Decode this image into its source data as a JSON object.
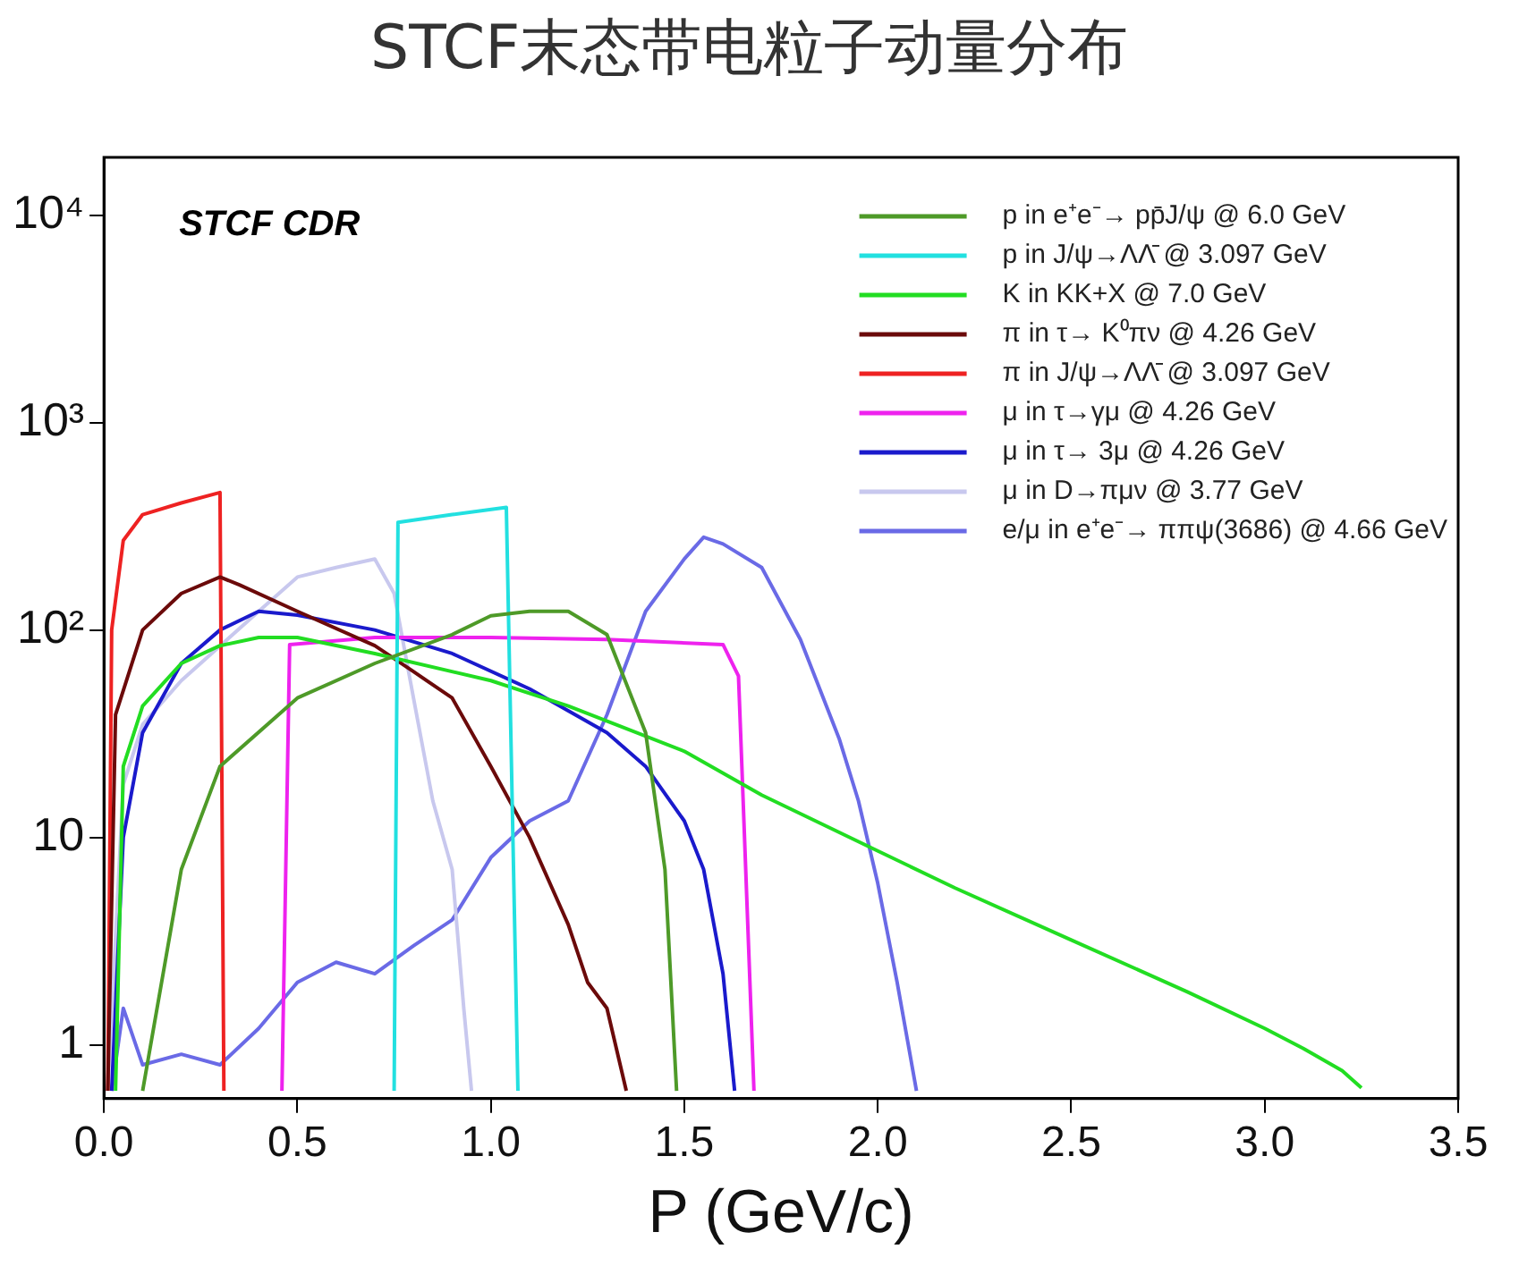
{
  "chart_data": {
    "type": "line",
    "title": "STCF末态带电粒子动量分布",
    "xlabel": "P (GeV/c)",
    "annotations": [
      "STCF CDR"
    ],
    "log": "y",
    "grid": false,
    "legend": "top right",
    "marker": "none",
    "xlim": [
      0,
      3.5
    ],
    "xticks": [
      {
        "value": 0,
        "label": "0.0"
      },
      0.5,
      {
        "value": 1,
        "label": "1.0"
      },
      1.5,
      {
        "value": 2,
        "label": "2.0"
      },
      2.5,
      {
        "value": 3,
        "label": "3.0"
      },
      3.5
    ],
    "ylim": [
      0.55,
      19000
    ],
    "yticks": [
      1,
      10,
      {
        "value": 100,
        "label": "10²"
      },
      {
        "value": 1000,
        "label": "10³"
      },
      {
        "value": 10000,
        "label": "10⁴"
      }
    ],
    "series": [
      {
        "name": "p in e⁺e⁻→ pp̄J/ψ @ 6.0 GeV",
        "color": "#4e9a28",
        "x": [
          0.1,
          0.2,
          0.3,
          0.5,
          0.7,
          0.9,
          1.0,
          1.1,
          1.2,
          1.3,
          1.4,
          1.45,
          1.48
        ],
        "values": [
          0.6,
          7,
          22,
          47,
          69,
          95,
          117,
          123,
          123,
          95,
          32,
          7,
          0.6
        ]
      },
      {
        "name": "p in J/ψ→ΛΛ̄ @ 3.097 GeV",
        "color": "#22e0e0",
        "x": [
          0.75,
          0.76,
          0.9,
          1.04,
          1.07
        ],
        "values": [
          0.6,
          330,
          360,
          390,
          0.6
        ]
      },
      {
        "name": "K in KK+X @ 7.0 GeV",
        "color": "#22dd22",
        "x": [
          0.03,
          0.05,
          0.1,
          0.2,
          0.3,
          0.4,
          0.5,
          0.7,
          1.0,
          1.2,
          1.5,
          1.7,
          2.0,
          2.2,
          2.5,
          2.8,
          3.0,
          3.1,
          3.2,
          3.25
        ],
        "values": [
          0.6,
          22,
          43,
          69,
          84,
          92,
          92,
          77,
          57,
          43,
          26,
          16,
          8.6,
          5.7,
          3.2,
          1.8,
          1.2,
          0.96,
          0.75,
          0.62
        ]
      },
      {
        "name": "π in τ→ K⁰πν @ 4.26 GeV",
        "color": "#6b0a0a",
        "x": [
          0.01,
          0.03,
          0.1,
          0.2,
          0.3,
          0.35,
          0.5,
          0.7,
          0.8,
          0.9,
          1.0,
          1.1,
          1.2,
          1.25,
          1.3,
          1.35
        ],
        "values": [
          0.6,
          39,
          100,
          150,
          180,
          165,
          123,
          84,
          63,
          47,
          22,
          10,
          3.8,
          2,
          1.5,
          0.6
        ]
      },
      {
        "name": "π in J/ψ→ΛΛ̄ @ 3.097 GeV",
        "color": "#ee2222",
        "x": [
          0.01,
          0.02,
          0.05,
          0.1,
          0.2,
          0.3,
          0.31
        ],
        "values": [
          0.6,
          100,
          270,
          360,
          410,
          460,
          0.6
        ]
      },
      {
        "name": "μ in τ→γμ @ 4.26 GeV",
        "color": "#ee22ee",
        "x": [
          0.46,
          0.48,
          0.7,
          1.0,
          1.3,
          1.6,
          1.64,
          1.68
        ],
        "values": [
          0.6,
          85,
          92,
          92,
          90,
          85,
          60,
          0.6
        ]
      },
      {
        "name": "μ in τ→ 3μ @ 4.26 GeV",
        "color": "#1a1acc",
        "x": [
          0.02,
          0.05,
          0.1,
          0.2,
          0.3,
          0.4,
          0.5,
          0.7,
          0.9,
          1.1,
          1.3,
          1.4,
          1.5,
          1.55,
          1.6,
          1.63
        ],
        "values": [
          0.6,
          10,
          32,
          69,
          100,
          123,
          118,
          100,
          77,
          52,
          32,
          22,
          12,
          7,
          2.2,
          0.6
        ]
      },
      {
        "name": "μ in D→πμν @ 3.77 GeV",
        "color": "#c8c8ee",
        "x": [
          0.01,
          0.05,
          0.1,
          0.2,
          0.4,
          0.5,
          0.6,
          0.7,
          0.75,
          0.8,
          0.85,
          0.9,
          0.93,
          0.95
        ],
        "values": [
          0.6,
          18,
          35,
          57,
          123,
          180,
          200,
          220,
          150,
          47,
          15,
          7,
          1.5,
          0.6
        ]
      },
      {
        "name": "e/μ in e⁺e⁻→ ππψ(3686) @ 4.66 GeV",
        "color": "#6a6ae6",
        "x": [
          0.02,
          0.05,
          0.1,
          0.2,
          0.3,
          0.4,
          0.5,
          0.6,
          0.7,
          0.8,
          0.9,
          1.0,
          1.1,
          1.2,
          1.3,
          1.4,
          1.5,
          1.55,
          1.6,
          1.7,
          1.8,
          1.9,
          1.95,
          2.0,
          2.05,
          2.1
        ],
        "values": [
          0.6,
          1.5,
          0.8,
          0.9,
          0.8,
          1.2,
          2,
          2.5,
          2.2,
          3,
          4,
          8,
          12,
          15,
          39,
          123,
          220,
          280,
          260,
          200,
          90,
          30,
          15,
          6,
          2,
          0.6
        ]
      }
    ]
  }
}
